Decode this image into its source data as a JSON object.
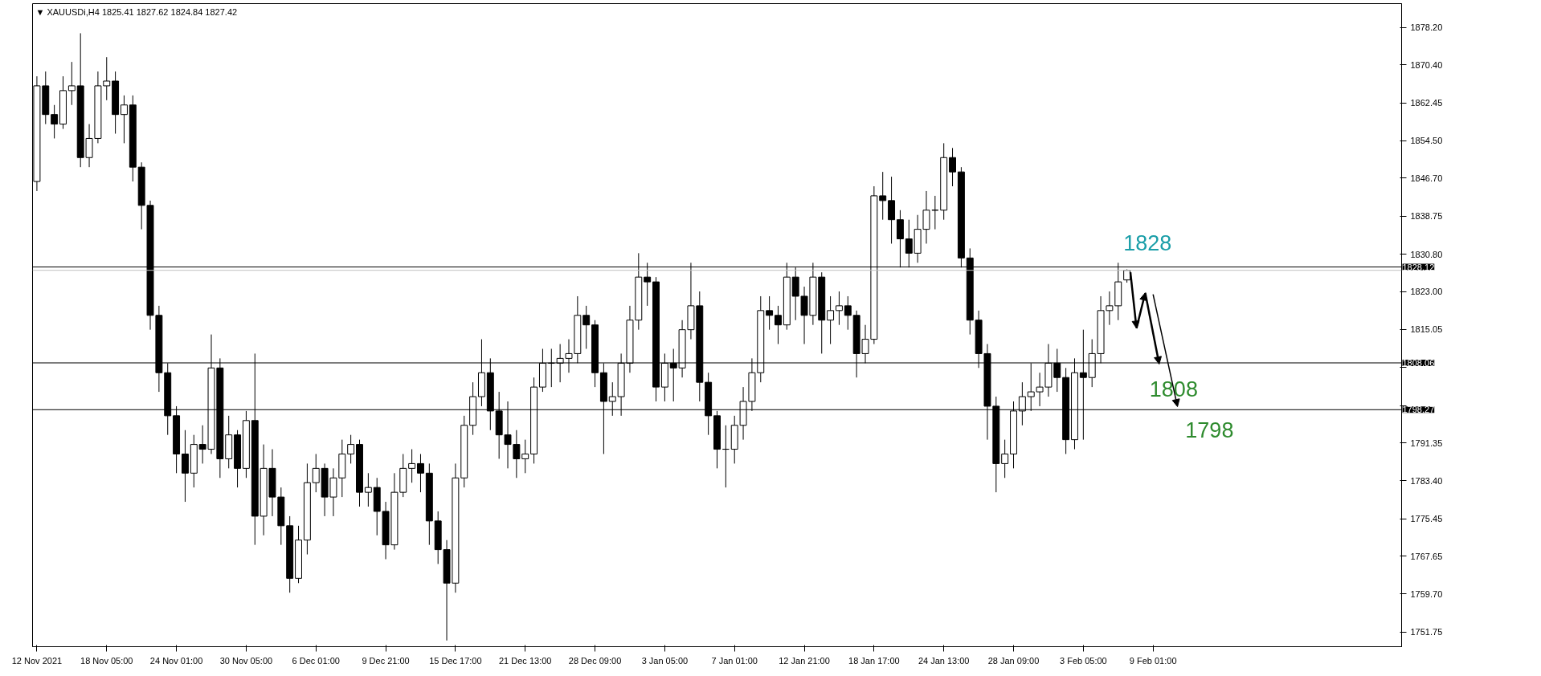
{
  "chart_data": {
    "type": "candlestick",
    "title": "▼ XAUUSDi,H4  1825.41 1827.62 1824.84 1827.42",
    "categories": [
      "12 Nov 2021",
      null,
      null,
      null,
      null,
      null,
      null,
      null,
      "18 Nov 05:00",
      null,
      null,
      null,
      null,
      null,
      null,
      null,
      "24 Nov 01:00",
      null,
      null,
      null,
      null,
      null,
      null,
      null,
      "30 Nov 05:00",
      null,
      null,
      null,
      null,
      null,
      null,
      null,
      "6 Dec 01:00",
      null,
      null,
      null,
      null,
      null,
      null,
      null,
      "9 Dec 21:00",
      null,
      null,
      null,
      null,
      null,
      null,
      null,
      "15 Dec 17:00",
      null,
      null,
      null,
      null,
      null,
      null,
      null,
      "21 Dec 13:00",
      null,
      null,
      null,
      null,
      null,
      null,
      null,
      "28 Dec 09:00",
      null,
      null,
      null,
      null,
      null,
      null,
      null,
      "3 Jan 05:00",
      null,
      null,
      null,
      null,
      null,
      null,
      null,
      "7 Jan 01:00",
      null,
      null,
      null,
      null,
      null,
      null,
      null,
      "12 Jan 21:00",
      null,
      null,
      null,
      null,
      null,
      null,
      null,
      "18 Jan 17:00",
      null,
      null,
      null,
      null,
      null,
      null,
      null,
      "24 Jan 13:00",
      null,
      null,
      null,
      null,
      null,
      null,
      null,
      "28 Jan 09:00",
      null,
      null,
      null,
      null,
      null,
      null,
      null,
      "3 Feb 05:00",
      null,
      null,
      null,
      null,
      null,
      null,
      null,
      "9 Feb 01:00",
      null,
      null,
      null,
      null,
      null,
      null,
      null,
      null,
      null,
      null,
      null,
      null,
      null,
      null,
      null,
      null,
      null,
      null,
      null,
      null,
      null,
      null,
      null,
      null,
      null,
      null,
      null,
      null
    ],
    "color": "#000000",
    "ohlc": [
      [
        1846,
        1868,
        1844,
        1866
      ],
      [
        1866,
        1869,
        1858,
        1860
      ],
      [
        1860,
        1862,
        1855,
        1858
      ],
      [
        1858,
        1868,
        1857,
        1865
      ],
      [
        1865,
        1871,
        1862,
        1866
      ],
      [
        1866,
        1877,
        1849,
        1851
      ],
      [
        1851,
        1858,
        1849,
        1855
      ],
      [
        1855,
        1869,
        1854,
        1866
      ],
      [
        1866,
        1872,
        1863,
        1867
      ],
      [
        1867,
        1869,
        1856,
        1860
      ],
      [
        1860,
        1864,
        1854,
        1862
      ],
      [
        1862,
        1864,
        1846,
        1849
      ],
      [
        1849,
        1850,
        1836,
        1841
      ],
      [
        1841,
        1842,
        1815,
        1818
      ],
      [
        1818,
        1820,
        1802,
        1806
      ],
      [
        1806,
        1808,
        1793,
        1797
      ],
      [
        1797,
        1799,
        1785,
        1789
      ],
      [
        1789,
        1794,
        1779,
        1785
      ],
      [
        1785,
        1793,
        1782,
        1791
      ],
      [
        1791,
        1795,
        1787,
        1790
      ],
      [
        1790,
        1814,
        1789,
        1807
      ],
      [
        1807,
        1809,
        1784,
        1788
      ],
      [
        1788,
        1797,
        1786,
        1793
      ],
      [
        1793,
        1794,
        1782,
        1786
      ],
      [
        1786,
        1798,
        1784,
        1796
      ],
      [
        1796,
        1810,
        1770,
        1776
      ],
      [
        1776,
        1791,
        1772,
        1786
      ],
      [
        1786,
        1790,
        1776,
        1780
      ],
      [
        1780,
        1782,
        1770,
        1774
      ],
      [
        1774,
        1776,
        1760,
        1763
      ],
      [
        1763,
        1774,
        1762,
        1771
      ],
      [
        1771,
        1787,
        1768,
        1783
      ],
      [
        1783,
        1789,
        1781,
        1786
      ],
      [
        1786,
        1787,
        1776,
        1780
      ],
      [
        1780,
        1786,
        1776,
        1784
      ],
      [
        1784,
        1792,
        1780,
        1789
      ],
      [
        1789,
        1793,
        1787,
        1791
      ],
      [
        1791,
        1792,
        1778,
        1781
      ],
      [
        1781,
        1785,
        1778,
        1782
      ],
      [
        1782,
        1784,
        1772,
        1777
      ],
      [
        1777,
        1779,
        1767,
        1770
      ],
      [
        1770,
        1785,
        1769,
        1781
      ],
      [
        1781,
        1789,
        1780,
        1786
      ],
      [
        1786,
        1790,
        1783,
        1787
      ],
      [
        1787,
        1789,
        1781,
        1785
      ],
      [
        1785,
        1787,
        1770,
        1775
      ],
      [
        1775,
        1777,
        1766,
        1769
      ],
      [
        1769,
        1771,
        1750,
        1762
      ],
      [
        1762,
        1787,
        1760,
        1784
      ],
      [
        1784,
        1797,
        1782,
        1795
      ],
      [
        1795,
        1804,
        1793,
        1801
      ],
      [
        1801,
        1813,
        1799,
        1806
      ],
      [
        1806,
        1809,
        1794,
        1798
      ],
      [
        1798,
        1802,
        1788,
        1793
      ],
      [
        1793,
        1800,
        1786,
        1791
      ],
      [
        1791,
        1794,
        1784,
        1788
      ],
      [
        1788,
        1792,
        1785,
        1789
      ],
      [
        1789,
        1805,
        1787,
        1803
      ],
      [
        1803,
        1811,
        1802,
        1808
      ],
      [
        1808,
        1811,
        1803,
        1808
      ],
      [
        1808,
        1812,
        1804,
        1809
      ],
      [
        1809,
        1813,
        1806,
        1810
      ],
      [
        1810,
        1822,
        1808,
        1818
      ],
      [
        1818,
        1820,
        1811,
        1816
      ],
      [
        1816,
        1817,
        1803,
        1806
      ],
      [
        1806,
        1808,
        1789,
        1800
      ],
      [
        1800,
        1804,
        1797,
        1801
      ],
      [
        1801,
        1810,
        1797,
        1808
      ],
      [
        1808,
        1820,
        1806,
        1817
      ],
      [
        1817,
        1831,
        1815,
        1826
      ],
      [
        1826,
        1829,
        1820,
        1825
      ],
      [
        1825,
        1826,
        1800,
        1803
      ],
      [
        1803,
        1810,
        1800,
        1808
      ],
      [
        1808,
        1811,
        1800,
        1807
      ],
      [
        1807,
        1817,
        1805,
        1815
      ],
      [
        1815,
        1829,
        1813,
        1820
      ],
      [
        1820,
        1823,
        1800,
        1804
      ],
      [
        1804,
        1806,
        1793,
        1797
      ],
      [
        1797,
        1798,
        1786,
        1790
      ],
      [
        1790,
        1795,
        1782,
        1790
      ],
      [
        1790,
        1797,
        1787,
        1795
      ],
      [
        1795,
        1803,
        1792,
        1800
      ],
      [
        1800,
        1809,
        1798,
        1806
      ],
      [
        1806,
        1822,
        1804,
        1819
      ],
      [
        1819,
        1822,
        1815,
        1818
      ],
      [
        1818,
        1820,
        1812,
        1816
      ],
      [
        1816,
        1829,
        1815,
        1826
      ],
      [
        1826,
        1828,
        1817,
        1822
      ],
      [
        1822,
        1824,
        1812,
        1818
      ],
      [
        1818,
        1829,
        1816,
        1826
      ],
      [
        1826,
        1827,
        1810,
        1817
      ],
      [
        1817,
        1822,
        1812,
        1819
      ],
      [
        1819,
        1823,
        1816,
        1820
      ],
      [
        1820,
        1822,
        1815,
        1818
      ],
      [
        1818,
        1819,
        1805,
        1810
      ],
      [
        1810,
        1816,
        1808,
        1813
      ],
      [
        1813,
        1845,
        1812,
        1843
      ],
      [
        1843,
        1848,
        1838,
        1842
      ],
      [
        1842,
        1847,
        1833,
        1838
      ],
      [
        1838,
        1840,
        1828,
        1834
      ],
      [
        1834,
        1838,
        1828,
        1831
      ],
      [
        1831,
        1839,
        1829,
        1836
      ],
      [
        1836,
        1844,
        1833,
        1840
      ],
      [
        1840,
        1843,
        1836,
        1840
      ],
      [
        1840,
        1854,
        1838,
        1851
      ],
      [
        1851,
        1853,
        1845,
        1848
      ],
      [
        1848,
        1849,
        1828,
        1830
      ],
      [
        1830,
        1832,
        1814,
        1817
      ],
      [
        1817,
        1819,
        1807,
        1810
      ],
      [
        1810,
        1812,
        1792,
        1799
      ],
      [
        1799,
        1801,
        1781,
        1787
      ],
      [
        1787,
        1792,
        1784,
        1789
      ],
      [
        1789,
        1800,
        1786,
        1798
      ],
      [
        1798,
        1804,
        1795,
        1801
      ],
      [
        1801,
        1808,
        1798,
        1802
      ],
      [
        1802,
        1806,
        1799,
        1803
      ],
      [
        1803,
        1812,
        1801,
        1808
      ],
      [
        1808,
        1811,
        1802,
        1805
      ],
      [
        1805,
        1807,
        1789,
        1792
      ],
      [
        1792,
        1809,
        1790,
        1806
      ],
      [
        1806,
        1815,
        1792,
        1805
      ],
      [
        1805,
        1813,
        1803,
        1810
      ],
      [
        1810,
        1822,
        1808,
        1819
      ],
      [
        1819,
        1823,
        1816,
        1820
      ],
      [
        1820,
        1829,
        1817,
        1825
      ],
      [
        1825.41,
        1827.62,
        1824.84,
        1827.42
      ],
      null,
      null,
      null,
      null,
      null,
      null,
      null,
      null,
      null,
      null,
      null,
      null,
      null,
      null,
      null,
      null,
      null,
      null,
      null,
      null,
      null,
      null,
      null,
      null,
      null,
      null,
      null,
      null,
      null,
      null,
      null
    ],
    "ylim": [
      1748.7,
      1883.2
    ],
    "yticks": [
      {
        "value": 1878.2,
        "label": "1878.20"
      },
      {
        "value": 1870.4,
        "label": "1870.40"
      },
      {
        "value": 1862.45,
        "label": "1862.45"
      },
      {
        "value": 1854.5,
        "label": "1854.50"
      },
      {
        "value": 1846.7,
        "label": "1846.70"
      },
      {
        "value": 1838.75,
        "label": "1838.75"
      },
      {
        "value": 1830.8,
        "label": "1830.80"
      },
      {
        "value": 1823,
        "label": "1823.00"
      },
      {
        "value": 1815.05,
        "label": "1815.05"
      },
      {
        "value": 1807.1,
        "label": null
      },
      {
        "value": 1799.15,
        "label": null
      },
      {
        "value": 1791.35,
        "label": "1791.35"
      },
      {
        "value": 1783.4,
        "label": "1783.40"
      },
      {
        "value": 1775.45,
        "label": "1775.45"
      },
      {
        "value": 1767.65,
        "label": "1767.65"
      },
      {
        "value": 1759.7,
        "label": "1759.70"
      },
      {
        "value": 1751.75,
        "label": "1751.75"
      }
    ],
    "ref_lines": [
      {
        "axis": "y",
        "value": 1828.12,
        "label": "1828.12",
        "color": "#000000"
      },
      {
        "axis": "y",
        "value": 1827.42,
        "label": null,
        "color": "#c0c0c0"
      },
      {
        "axis": "y",
        "value": 1808.06,
        "label": "1808.06",
        "color": "#000000"
      },
      {
        "axis": "y",
        "value": 1798.27,
        "label": "1798.27",
        "color": "#000000"
      }
    ],
    "annotations": [
      "1828",
      "1808",
      "1798"
    ]
  }
}
